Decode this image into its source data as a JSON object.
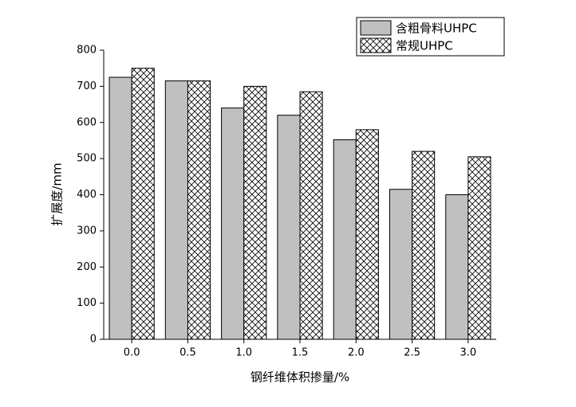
{
  "chart_data": {
    "type": "bar",
    "x_label": "钢纤维体积掺量/%",
    "y_label": "扩展度/mm",
    "categories": [
      "0.0",
      "0.5",
      "1.0",
      "1.5",
      "2.0",
      "2.5",
      "3.0"
    ],
    "series": [
      {
        "name": "含粗骨料UHPC",
        "color": "#c0c0c0",
        "values": [
          725,
          715,
          640,
          620,
          552,
          415,
          400
        ]
      },
      {
        "name": "常规UHPC",
        "color": "#000000",
        "hatch": "crosshatch",
        "values": [
          750,
          715,
          700,
          685,
          580,
          520,
          505
        ]
      }
    ],
    "ylim": [
      0,
      800
    ],
    "yticks": [
      0,
      100,
      200,
      300,
      400,
      500,
      600,
      700,
      800
    ],
    "legend": "top-right"
  }
}
